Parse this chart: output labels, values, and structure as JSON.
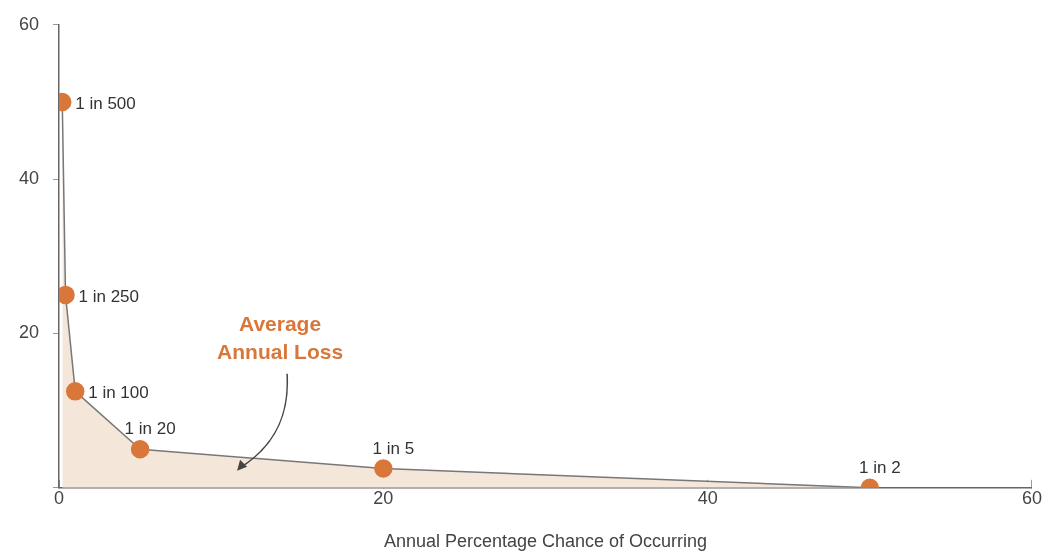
{
  "chart_data": {
    "type": "area",
    "xlabel": "Annual Percentage Chance of Occurring",
    "x": [
      0.2,
      0.4,
      1,
      5,
      20,
      50
    ],
    "series": [
      {
        "color": "#d9773a",
        "values": [
          50,
          25,
          12.5,
          5,
          2.5,
          0
        ]
      }
    ],
    "marker": "circle",
    "grid": false,
    "legend": false,
    "xlim": [
      0,
      60
    ],
    "xticks": [
      0,
      20,
      40,
      60
    ],
    "ylim": [
      0,
      60
    ],
    "yticks": [
      {
        "value": 0,
        "label": null
      },
      20,
      40,
      60
    ],
    "annotations": [
      {
        "text": "1 in 500",
        "x": 0.2,
        "y": 50
      },
      {
        "text": "1 in 250",
        "x": 0.4,
        "y": 25
      },
      {
        "text": "1 in 100",
        "x": 1,
        "y": 12.5
      },
      {
        "text": "1 in 20",
        "x": 5,
        "y": 5
      },
      {
        "text": "1 in 5",
        "x": 20,
        "y": 2.5
      },
      {
        "text": "1 in 2",
        "x": 50,
        "y": 0
      },
      "Average Annual Loss"
    ]
  }
}
